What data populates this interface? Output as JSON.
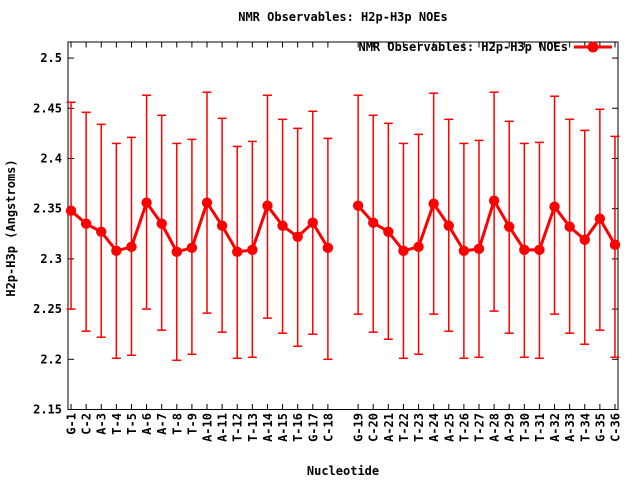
{
  "title": "NMR Observables: H2p-H3p NOEs",
  "legend": {
    "label": "NMR Observables: H2p-H3p NOEs"
  },
  "chart_data": {
    "type": "line",
    "title": "NMR Observables: H2p-H3p NOEs",
    "xlabel": "Nucleotide",
    "ylabel": "H2p-H3p (Angstroms)",
    "legend_label": "NMR Observables: H2p-H3p NOEs",
    "legend_position": "top-right-inside",
    "grid": false,
    "series_color": "#ff0000",
    "axis_color": "#000000",
    "marker": "filled-circle",
    "ylim": [
      2.15,
      2.516
    ],
    "xlim": [
      0.8,
      37.2
    ],
    "y_ticks": [
      2.15,
      2.2,
      2.25,
      2.3,
      2.35,
      2.4,
      2.45,
      2.5
    ],
    "segment_break_after_index": 17,
    "categories": [
      "G-1",
      "C-2",
      "A-3",
      "T-4",
      "T-5",
      "A-6",
      "A-7",
      "T-8",
      "T-9",
      "A-10",
      "A-11",
      "T-12",
      "T-13",
      "A-14",
      "A-15",
      "T-16",
      "G-17",
      "C-18",
      "G-19",
      "C-20",
      "A-21",
      "T-22",
      "T-23",
      "A-24",
      "A-25",
      "T-26",
      "T-27",
      "A-28",
      "A-29",
      "T-30",
      "T-31",
      "A-32",
      "A-33",
      "T-34",
      "G-35",
      "C-36"
    ],
    "values": [
      2.348,
      2.335,
      2.327,
      2.308,
      2.312,
      2.356,
      2.335,
      2.307,
      2.311,
      2.356,
      2.333,
      2.307,
      2.309,
      2.353,
      2.333,
      2.322,
      2.336,
      2.311,
      2.353,
      2.336,
      2.327,
      2.308,
      2.312,
      2.355,
      2.333,
      2.308,
      2.31,
      2.358,
      2.332,
      2.309,
      2.309,
      2.352,
      2.332,
      2.319,
      2.34,
      2.314
    ],
    "err_high": [
      2.456,
      2.446,
      2.434,
      2.415,
      2.421,
      2.463,
      2.443,
      2.415,
      2.419,
      2.466,
      2.44,
      2.412,
      2.417,
      2.463,
      2.439,
      2.43,
      2.447,
      2.42,
      2.463,
      2.443,
      2.435,
      2.415,
      2.424,
      2.465,
      2.439,
      2.415,
      2.418,
      2.466,
      2.437,
      2.415,
      2.416,
      2.462,
      2.439,
      2.428,
      2.449,
      2.422
    ],
    "err_low": [
      2.25,
      2.228,
      2.222,
      2.201,
      2.204,
      2.25,
      2.229,
      2.199,
      2.205,
      2.246,
      2.227,
      2.201,
      2.202,
      2.241,
      2.226,
      2.213,
      2.225,
      2.2,
      2.245,
      2.227,
      2.22,
      2.201,
      2.205,
      2.245,
      2.228,
      2.201,
      2.202,
      2.248,
      2.226,
      2.202,
      2.201,
      2.245,
      2.226,
      2.215,
      2.229,
      2.202
    ]
  }
}
